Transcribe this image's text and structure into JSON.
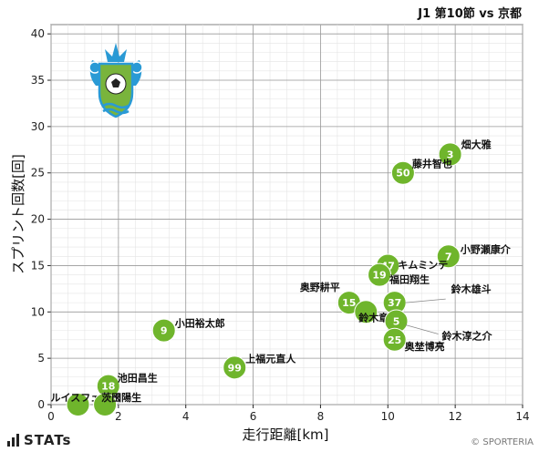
{
  "chart_data": {
    "type": "scatter",
    "title": "J1 第10節 vs 京都",
    "xlabel": "走行距離[km]",
    "ylabel": "スプリント回数[回]",
    "xlim": [
      0,
      14
    ],
    "ylim": [
      0,
      41
    ],
    "xticks": [
      0,
      2,
      4,
      6,
      8,
      10,
      12,
      14
    ],
    "yticks": [
      0,
      5,
      10,
      15,
      20,
      25,
      30,
      35,
      40
    ],
    "grid": true,
    "point_color": "#6fb52c",
    "points": [
      {
        "number": "3",
        "name": "畑大雅",
        "x": 11.85,
        "y": 27.0
      },
      {
        "number": "50",
        "name": "藤井智也",
        "x": 10.45,
        "y": 25.0
      },
      {
        "number": "7",
        "name": "小野瀬康介",
        "x": 11.8,
        "y": 16.0
      },
      {
        "number": "47",
        "name": "キムミンテ",
        "x": 10.0,
        "y": 15.0
      },
      {
        "number": "19",
        "name": "福田翔生",
        "x": 9.75,
        "y": 14.0
      },
      {
        "number": "15",
        "name": "奥野耕平",
        "x": 8.85,
        "y": 11.0
      },
      {
        "number": "37",
        "name": "鈴木雄斗",
        "x": 10.2,
        "y": 11.0
      },
      {
        "number": "",
        "name": "鈴木章斗",
        "x": 9.35,
        "y": 10.0
      },
      {
        "number": "5",
        "name": "鈴木淳之介",
        "x": 10.25,
        "y": 9.0
      },
      {
        "number": "25",
        "name": "奥埜博亮",
        "x": 10.2,
        "y": 7.0
      },
      {
        "number": "9",
        "name": "小田裕太郎",
        "x": 3.35,
        "y": 8.0
      },
      {
        "number": "99",
        "name": "上福元直人",
        "x": 5.45,
        "y": 4.0
      },
      {
        "number": "18",
        "name": "池田昌生",
        "x": 1.7,
        "y": 2.0
      },
      {
        "number": "",
        "name": "ルイスフェリペ",
        "x": 0.8,
        "y": 0.0
      },
      {
        "number": "",
        "name": "茨田陽生",
        "x": 1.6,
        "y": 0.0
      }
    ]
  },
  "footer": {
    "brand": "STATs",
    "copyright": "© SPORTERIA"
  }
}
